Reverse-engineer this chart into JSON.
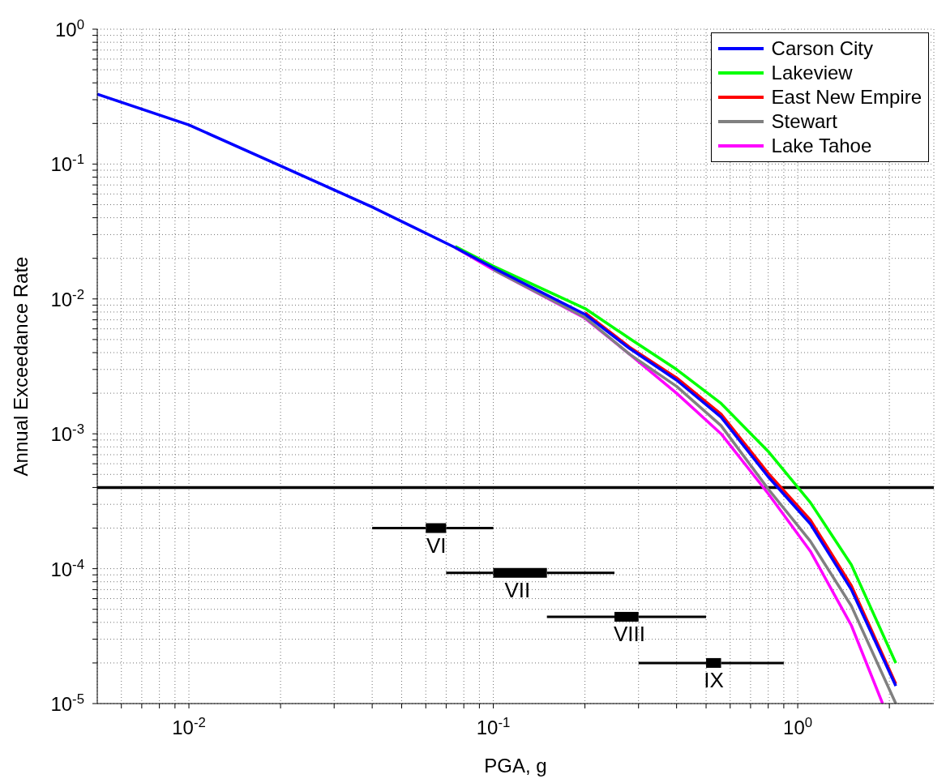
{
  "chart_data": {
    "type": "line",
    "xlabel": "PGA, g",
    "ylabel": "Annual Exceedance Rate",
    "log": "xy",
    "grid": true,
    "legend": "top right",
    "marker": "none",
    "line_style": "solid",
    "xlim": [
      0.005,
      2.8
    ],
    "xticks": [
      {
        "value": 0.006,
        "label": null
      },
      {
        "value": 0.007,
        "label": null
      },
      {
        "value": 0.008,
        "label": null
      },
      {
        "value": 0.009,
        "label": null
      },
      {
        "value": 0.01,
        "label": "10$^{-2}$"
      },
      {
        "value": 0.02,
        "label": null
      },
      {
        "value": 0.03,
        "label": null
      },
      {
        "value": 0.04,
        "label": null
      },
      {
        "value": 0.05,
        "label": null
      },
      {
        "value": 0.06,
        "label": null
      },
      {
        "value": 0.07,
        "label": null
      },
      {
        "value": 0.08,
        "label": null
      },
      {
        "value": 0.09,
        "label": null
      },
      {
        "value": 0.1,
        "label": "10$^{-1}$"
      },
      {
        "value": 0.2,
        "label": null
      },
      {
        "value": 0.3,
        "label": null
      },
      {
        "value": 0.4,
        "label": null
      },
      {
        "value": 0.5,
        "label": null
      },
      {
        "value": 0.6,
        "label": null
      },
      {
        "value": 0.7,
        "label": null
      },
      {
        "value": 0.8,
        "label": null
      },
      {
        "value": 0.9,
        "label": null
      },
      {
        "value": 1,
        "label": "10$^{0}$"
      },
      {
        "value": 2,
        "label": null
      }
    ],
    "ylim": [
      1e-05,
      1
    ],
    "yticks": [
      {
        "value": 1e-05,
        "label": "10$^{-5}$"
      },
      {
        "value": 2e-05,
        "label": null
      },
      {
        "value": 3e-05,
        "label": null
      },
      {
        "value": 4e-05,
        "label": null
      },
      {
        "value": 5e-05,
        "label": null
      },
      {
        "value": 6e-05,
        "label": null
      },
      {
        "value": 7e-05,
        "label": null
      },
      {
        "value": 8e-05,
        "label": null
      },
      {
        "value": 9e-05,
        "label": null
      },
      {
        "value": 0.0001,
        "label": "10$^{-4}$"
      },
      {
        "value": 0.0002,
        "label": null
      },
      {
        "value": 0.0003,
        "label": null
      },
      {
        "value": 0.0004,
        "label": null
      },
      {
        "value": 0.0005,
        "label": null
      },
      {
        "value": 0.0006,
        "label": null
      },
      {
        "value": 0.0007,
        "label": null
      },
      {
        "value": 0.0008,
        "label": null
      },
      {
        "value": 0.0009,
        "label": null
      },
      {
        "value": 0.001,
        "label": "10$^{-3}$"
      },
      {
        "value": 0.002,
        "label": null
      },
      {
        "value": 0.003,
        "label": null
      },
      {
        "value": 0.004,
        "label": null
      },
      {
        "value": 0.005,
        "label": null
      },
      {
        "value": 0.006,
        "label": null
      },
      {
        "value": 0.007,
        "label": null
      },
      {
        "value": 0.008,
        "label": null
      },
      {
        "value": 0.009,
        "label": null
      },
      {
        "value": 0.01,
        "label": "10$^{-2}$"
      },
      {
        "value": 0.02,
        "label": null
      },
      {
        "value": 0.03,
        "label": null
      },
      {
        "value": 0.04,
        "label": null
      },
      {
        "value": 0.05,
        "label": null
      },
      {
        "value": 0.06,
        "label": null
      },
      {
        "value": 0.07,
        "label": null
      },
      {
        "value": 0.08,
        "label": null
      },
      {
        "value": 0.09,
        "label": null
      },
      {
        "value": 0.1,
        "label": "10$^{-1}$"
      },
      {
        "value": 0.2,
        "label": null
      },
      {
        "value": 0.3,
        "label": null
      },
      {
        "value": 0.4,
        "label": null
      },
      {
        "value": 0.5,
        "label": null
      },
      {
        "value": 0.6,
        "label": null
      },
      {
        "value": 0.7,
        "label": null
      },
      {
        "value": 0.8,
        "label": null
      },
      {
        "value": 0.9,
        "label": null
      },
      {
        "value": 1,
        "label": "10$^{0}$"
      }
    ],
    "x": [
      0.005,
      0.01,
      0.02,
      0.04,
      0.075,
      0.1,
      0.2,
      0.28,
      0.4,
      0.56,
      0.8,
      1.1,
      1.5,
      2.1
    ],
    "series": [
      {
        "name": "Carson City",
        "color": "#0000ff",
        "values": [
          0.33,
          0.195,
          0.097,
          0.048,
          0.024,
          0.017,
          0.0077,
          0.0043,
          0.0025,
          0.00133,
          0.00048,
          0.000215,
          7e-05,
          1.35e-05
        ]
      },
      {
        "name": "Lakeview",
        "color": "#00ff00",
        "values": [
          null,
          null,
          null,
          null,
          0.0245,
          0.0175,
          0.0085,
          0.0051,
          0.003,
          0.00168,
          0.00074,
          0.00031,
          0.000107,
          2e-05
        ]
      },
      {
        "name": "East New Empire",
        "color": "#ff0000",
        "values": [
          null,
          null,
          null,
          null,
          null,
          null,
          0.0079,
          0.0044,
          0.0026,
          0.0014,
          0.00051,
          0.00023,
          7.5e-05,
          1.4e-05
        ]
      },
      {
        "name": "Stewart",
        "color": "#808080",
        "values": [
          null,
          null,
          null,
          null,
          null,
          0.0165,
          0.0073,
          0.0039,
          0.00225,
          0.00115,
          0.00039,
          0.00016,
          5.3e-05,
          1e-05
        ]
      },
      {
        "name": "Lake Tahoe",
        "color": "#ff00ff",
        "x": [
          0.075,
          0.1,
          0.2,
          0.28,
          0.4,
          0.56,
          0.8,
          1.1,
          1.5,
          1.9
        ],
        "values": [
          0.024,
          0.0165,
          0.0072,
          0.0039,
          0.002,
          0.001,
          0.00036,
          0.000135,
          3.8e-05,
          1e-05
        ]
      },
      {
        "type": "line",
        "color": "#000000",
        "x": [
          0.06,
          0.07
        ],
        "values": [
          0.0002,
          0.0002
        ],
        "xerrors": [
          [
            0.04,
            0.06
          ],
          [
            0.07,
            0.1
          ]
        ]
      },
      {
        "type": "line",
        "color": "#000000",
        "x": [
          0.1,
          0.15
        ],
        "values": [
          9.3e-05,
          9.3e-05
        ],
        "xerrors": [
          [
            0.07,
            0.1
          ],
          [
            0.15,
            0.25
          ]
        ]
      },
      {
        "type": "line",
        "color": "#000000",
        "x": [
          0.25,
          0.3
        ],
        "values": [
          4.4e-05,
          4.4e-05
        ],
        "xerrors": [
          [
            0.15,
            0.25
          ],
          [
            0.3,
            0.5
          ]
        ]
      },
      {
        "type": "line",
        "color": "#000000",
        "x": [
          0.5,
          0.56
        ],
        "values": [
          2e-05,
          2e-05
        ],
        "xerrors": [
          [
            0.3,
            0.5
          ],
          [
            0.56,
            0.9
          ]
        ]
      }
    ],
    "ref_lines": [
      {
        "axis": "y",
        "value": 0.0004,
        "color": "#000000"
      }
    ],
    "annotations": [
      {
        "text": "VI",
        "x": 0.065,
        "y": 0.0002
      },
      {
        "text": "VII",
        "x": 0.12,
        "y": 9.3e-05
      },
      {
        "text": "VIII",
        "x": 0.28,
        "y": 4.4e-05
      },
      {
        "text": "IX",
        "x": 0.53,
        "y": 2e-05
      }
    ]
  }
}
